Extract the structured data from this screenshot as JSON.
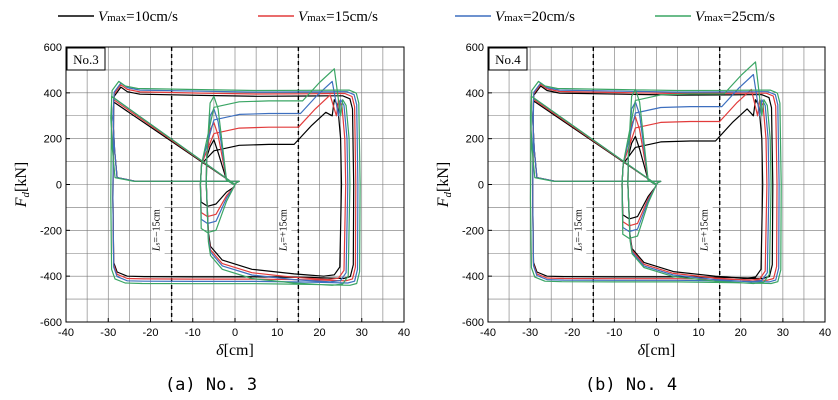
{
  "legend": {
    "items": [
      {
        "name": "Vmax=10cm/s",
        "prefix": "V",
        "sub": "max",
        "suffix": "=10cm/s",
        "color": "#000000"
      },
      {
        "name": "Vmax=15cm/s",
        "prefix": "V",
        "sub": "max",
        "suffix": "=15cm/s",
        "color": "#e23b3b"
      },
      {
        "name": "Vmax=20cm/s",
        "prefix": "V",
        "sub": "max",
        "suffix": "=20cm/s",
        "color": "#3d6fbf"
      },
      {
        "name": "Vmax=25cm/s",
        "prefix": "V",
        "sub": "max",
        "suffix": "=25cm/s",
        "color": "#3aa564"
      }
    ]
  },
  "chart_data": [
    {
      "type": "line",
      "panel_label": "No.3",
      "caption": "(a) No. 3",
      "xlabel": {
        "symbol": "δ",
        "unit": "[cm]"
      },
      "ylabel": {
        "symbol": "F",
        "sub": "d",
        "unit": "[kN]"
      },
      "xlim": [
        -40,
        40
      ],
      "ylim": [
        -600,
        600
      ],
      "xticks": [
        -40,
        -30,
        -20,
        -10,
        0,
        10,
        20,
        30,
        40
      ],
      "yticks": [
        -600,
        -400,
        -200,
        0,
        200,
        400,
        600
      ],
      "grid": true,
      "reference_lines": [
        {
          "x": -15,
          "label": "Ls=−15cm",
          "main": "L",
          "sub": "s",
          "tail": "=−15cm"
        },
        {
          "x": 15,
          "label": "Ls=+15cm",
          "main": "L",
          "sub": "s",
          "tail": "=+15cm"
        }
      ],
      "series": [
        {
          "name": "Vmax=10cm/s",
          "color": "#000000",
          "outer": {
            "x_left": -29.5,
            "x_right": 28.5,
            "f_top": 390,
            "f_bot": -410
          },
          "inner": {
            "x_left": -8,
            "x_right": 20,
            "f_top": 175,
            "f_bot": -400,
            "f_bot_left": -95
          }
        },
        {
          "name": "Vmax=15cm/s",
          "color": "#e23b3b",
          "outer": {
            "x_left": -29.5,
            "x_right": 29,
            "f_top": 400,
            "f_bot": -420
          },
          "inner": {
            "x_left": -8,
            "x_right": 21,
            "f_top": 250,
            "f_bot": -415,
            "f_bot_left": -140
          }
        },
        {
          "name": "Vmax=20cm/s",
          "color": "#3d6fbf",
          "outer": {
            "x_left": -29.5,
            "x_right": 29.5,
            "f_top": 408,
            "f_bot": -430
          },
          "inner": {
            "x_left": -8,
            "x_right": 21.5,
            "f_top": 310,
            "f_bot": -425,
            "f_bot_left": -170
          }
        },
        {
          "name": "Vmax=25cm/s",
          "color": "#3aa564",
          "outer": {
            "x_left": -30,
            "x_right": 30,
            "f_top": 415,
            "f_bot": -440
          },
          "inner": {
            "x_left": -8,
            "x_right": 22,
            "f_top": 365,
            "f_bot": -440,
            "f_bot_left": -210
          }
        }
      ]
    },
    {
      "type": "line",
      "panel_label": "No.4",
      "caption": "(b) No. 4",
      "xlabel": {
        "symbol": "δ",
        "unit": "[cm]"
      },
      "ylabel": {
        "symbol": "F",
        "sub": "d",
        "unit": "[kN]"
      },
      "xlim": [
        -40,
        40
      ],
      "ylim": [
        -600,
        600
      ],
      "xticks": [
        -40,
        -30,
        -20,
        -10,
        0,
        10,
        20,
        30,
        40
      ],
      "yticks": [
        -600,
        -400,
        -200,
        0,
        200,
        400,
        600
      ],
      "grid": true,
      "reference_lines": [
        {
          "x": -15,
          "label": "Ls=−15cm",
          "main": "L",
          "sub": "s",
          "tail": "=−15cm"
        },
        {
          "x": 15,
          "label": "Ls=+15cm",
          "main": "L",
          "sub": "s",
          "tail": "=+15cm"
        }
      ],
      "series": [
        {
          "name": "Vmax=10cm/s",
          "color": "#000000",
          "outer": {
            "x_left": -30,
            "x_right": 28,
            "f_top": 395,
            "f_bot": -410
          },
          "inner": {
            "x_left": -8,
            "x_right": 20,
            "f_top": 190,
            "f_bot": -410,
            "f_bot_left": -150
          }
        },
        {
          "name": "Vmax=15cm/s",
          "color": "#e23b3b",
          "outer": {
            "x_left": -30,
            "x_right": 29,
            "f_top": 402,
            "f_bot": -418
          },
          "inner": {
            "x_left": -8,
            "x_right": 21,
            "f_top": 275,
            "f_bot": -418,
            "f_bot_left": -180
          }
        },
        {
          "name": "Vmax=20cm/s",
          "color": "#3d6fbf",
          "outer": {
            "x_left": -30,
            "x_right": 29.5,
            "f_top": 408,
            "f_bot": -425
          },
          "inner": {
            "x_left": -8,
            "x_right": 21.5,
            "f_top": 340,
            "f_bot": -425,
            "f_bot_left": -205
          }
        },
        {
          "name": "Vmax=25cm/s",
          "color": "#3aa564",
          "outer": {
            "x_left": -30.5,
            "x_right": 30,
            "f_top": 415,
            "f_bot": -432
          },
          "inner": {
            "x_left": -8,
            "x_right": 22,
            "f_top": 395,
            "f_bot": -432,
            "f_bot_left": -235
          }
        }
      ]
    }
  ]
}
